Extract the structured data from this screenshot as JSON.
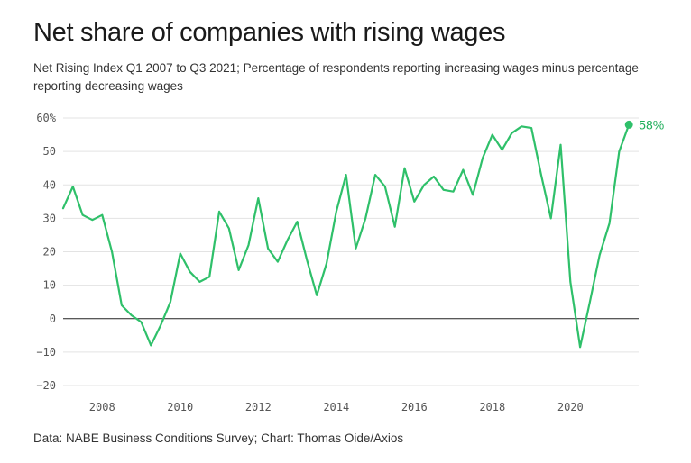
{
  "title": "Net share of companies with rising wages",
  "subtitle": "Net Rising Index Q1 2007 to Q3 2021; Percentage of respondents reporting increasing wages minus percentage reporting decreasing wages",
  "source": "Data: NABE Business Conditions Survey; Chart: Thomas Oide/Axios",
  "colors": {
    "line": "#2fc06a",
    "endlabel": "#1fae5b",
    "grid": "#e3e3e3",
    "zero": "#222222"
  },
  "chart_data": {
    "type": "line",
    "y_ticks": [
      "60%",
      "50",
      "40",
      "30",
      "20",
      "10",
      "0",
      "−10",
      "−20"
    ],
    "y_tick_values": [
      60,
      50,
      40,
      30,
      20,
      10,
      0,
      -10,
      -20
    ],
    "x_ticks": [
      "2008",
      "2010",
      "2012",
      "2014",
      "2016",
      "2018",
      "2020"
    ],
    "x_tick_values": [
      2008,
      2010,
      2012,
      2014,
      2016,
      2018,
      2020
    ],
    "ylim": [
      -20,
      60
    ],
    "xlim": [
      2007.0,
      2021.75
    ],
    "grid": true,
    "end_label": "58%",
    "series": [
      {
        "x": [
          2007.0,
          2007.25,
          2007.5,
          2007.75,
          2008.0,
          2008.25,
          2008.5,
          2008.75,
          2009.0,
          2009.25,
          2009.5,
          2009.75,
          2010.0,
          2010.25,
          2010.5,
          2010.75,
          2011.0,
          2011.25,
          2011.5,
          2011.75,
          2012.0,
          2012.25,
          2012.5,
          2012.75,
          2013.0,
          2013.25,
          2013.5,
          2013.75,
          2014.0,
          2014.25,
          2014.5,
          2014.75,
          2015.0,
          2015.25,
          2015.5,
          2015.75,
          2016.0,
          2016.25,
          2016.5,
          2016.75,
          2017.0,
          2017.25,
          2017.5,
          2017.75,
          2018.0,
          2018.25,
          2018.5,
          2018.75,
          2019.0,
          2019.25,
          2019.5,
          2019.75,
          2020.0,
          2020.25,
          2020.5,
          2020.75,
          2021.0,
          2021.25,
          2021.5
        ],
        "values": [
          33,
          39.5,
          31,
          29.5,
          31,
          20,
          4,
          1,
          -1,
          -8,
          -2,
          5,
          19.5,
          14,
          11,
          12.5,
          32,
          27,
          14.5,
          22,
          36,
          21,
          17,
          23.5,
          29,
          17.5,
          7,
          16.5,
          32,
          43,
          21,
          30,
          43,
          39.5,
          27.5,
          45,
          35,
          40,
          42.5,
          38.5,
          38,
          44.5,
          37,
          48,
          55,
          50.5,
          55.5,
          57.5,
          57,
          43,
          30,
          52,
          11,
          -8.5,
          5,
          19,
          28.5,
          50,
          58
        ]
      }
    ]
  }
}
